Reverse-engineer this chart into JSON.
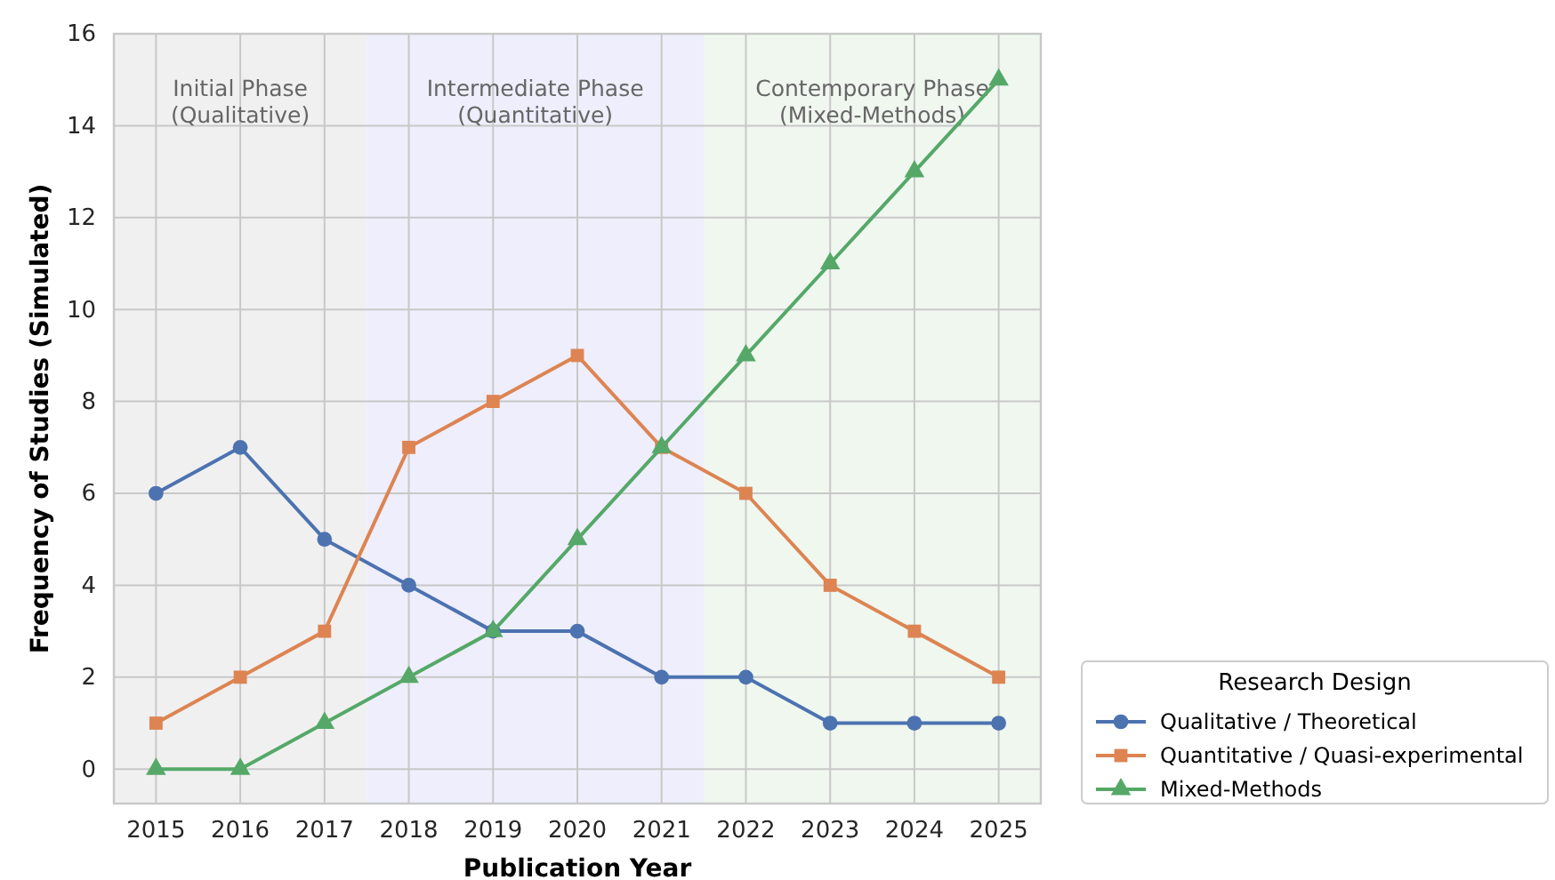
{
  "chart_data": {
    "type": "line",
    "xlabel": "Publication Year",
    "ylabel": "Frequency of Studies (Simulated)",
    "legend_title": "Research Design",
    "x": [
      2015,
      2016,
      2017,
      2018,
      2019,
      2020,
      2021,
      2022,
      2023,
      2024,
      2025
    ],
    "series": [
      {
        "name": "Qualitative / Theoretical",
        "color": "#4c72b0",
        "marker": "circle",
        "values": [
          6,
          7,
          5,
          4,
          3,
          3,
          2,
          2,
          1,
          1,
          1
        ]
      },
      {
        "name": "Quantitative / Quasi-experimental",
        "color": "#dd8452",
        "marker": "square",
        "values": [
          1,
          2,
          3,
          7,
          8,
          9,
          7,
          6,
          4,
          3,
          2
        ]
      },
      {
        "name": "Mixed-Methods",
        "color": "#55a868",
        "marker": "triangle",
        "values": [
          0,
          0,
          1,
          2,
          3,
          5,
          7,
          9,
          11,
          13,
          15
        ]
      }
    ],
    "bands": [
      {
        "axis": "x",
        "from": 2014.5,
        "to": 2017.5,
        "label": "Initial Phase\n(Qualitative)",
        "color": "#f0f0f0"
      },
      {
        "axis": "x",
        "from": 2017.5,
        "to": 2021.5,
        "label": "Intermediate Phase\n(Quantitative)",
        "color": "#eeeefc"
      },
      {
        "axis": "x",
        "from": 2021.5,
        "to": 2025.5,
        "label": "Contemporary Phase\n(Mixed-Methods)",
        "color": "#eff7ef"
      }
    ],
    "xlim": [
      2014.5,
      2025.5
    ],
    "ylim": [
      -0.75,
      16
    ],
    "xticks": [
      2015,
      2016,
      2017,
      2018,
      2019,
      2020,
      2021,
      2022,
      2023,
      2024,
      2025
    ],
    "yticks": [
      0,
      2,
      4,
      6,
      8,
      10,
      12,
      14,
      16
    ],
    "grid": true,
    "legend": "bottom right",
    "line_style": "solid"
  }
}
